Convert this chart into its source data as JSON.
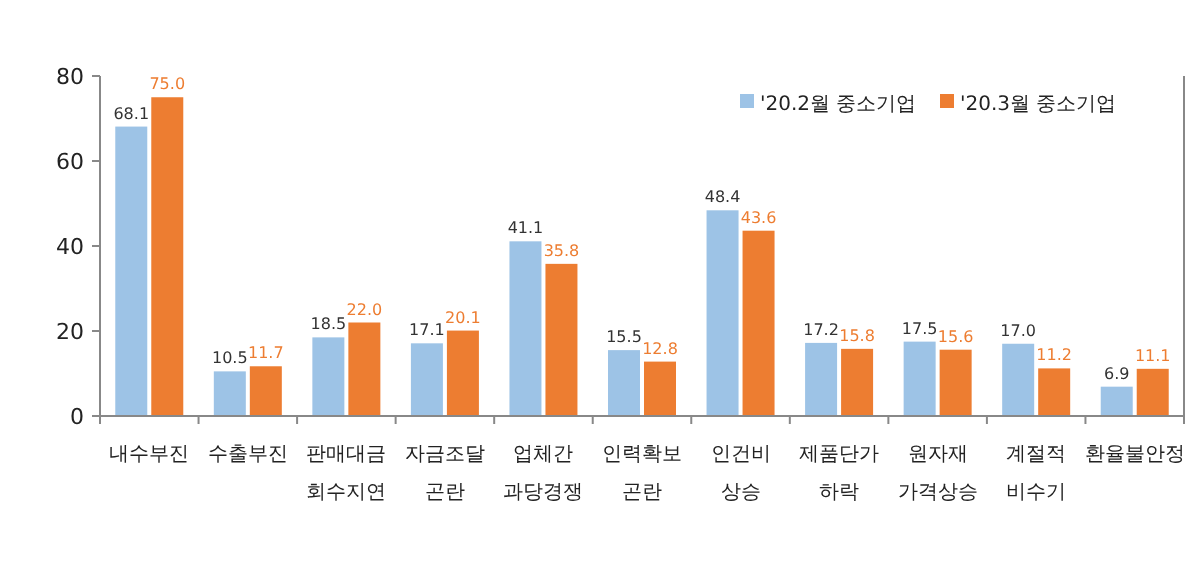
{
  "chart_data": {
    "type": "bar",
    "categories": [
      "내수부진",
      "수출부진",
      "판매대금 회수지연",
      "자금조달 곤란",
      "업체간 과당경쟁",
      "인력확보 곤란",
      "인건비 상승",
      "제품단가 하락",
      "원자재 가격상승",
      "계절적 비수기",
      "환율불안정"
    ],
    "series": [
      {
        "name": "'20.2월 중소기업",
        "color": "#9dc3e6",
        "values": [
          68.1,
          10.5,
          18.5,
          17.1,
          41.1,
          15.5,
          48.4,
          17.2,
          17.5,
          17.0,
          6.9
        ],
        "value_labels": [
          "68.1",
          "10.5",
          "18.5",
          "17.1",
          "41.1",
          "15.5",
          "48.4",
          "17.2",
          "17.5",
          "17.0",
          "6.9"
        ]
      },
      {
        "name": "'20.3월 중소기업",
        "color": "#ed7d31",
        "values": [
          75.0,
          11.7,
          22.0,
          20.1,
          35.8,
          12.8,
          43.6,
          15.8,
          15.6,
          11.2,
          11.1
        ],
        "value_labels": [
          "75.0",
          "11.7",
          "22.0",
          "20.1",
          "35.8",
          "12.8",
          "43.6",
          "15.8",
          "15.6",
          "11.2",
          "11.1"
        ]
      }
    ],
    "ylim": [
      0,
      80
    ],
    "yticks": [
      0,
      20,
      40,
      60,
      80
    ],
    "legend": "top right"
  }
}
